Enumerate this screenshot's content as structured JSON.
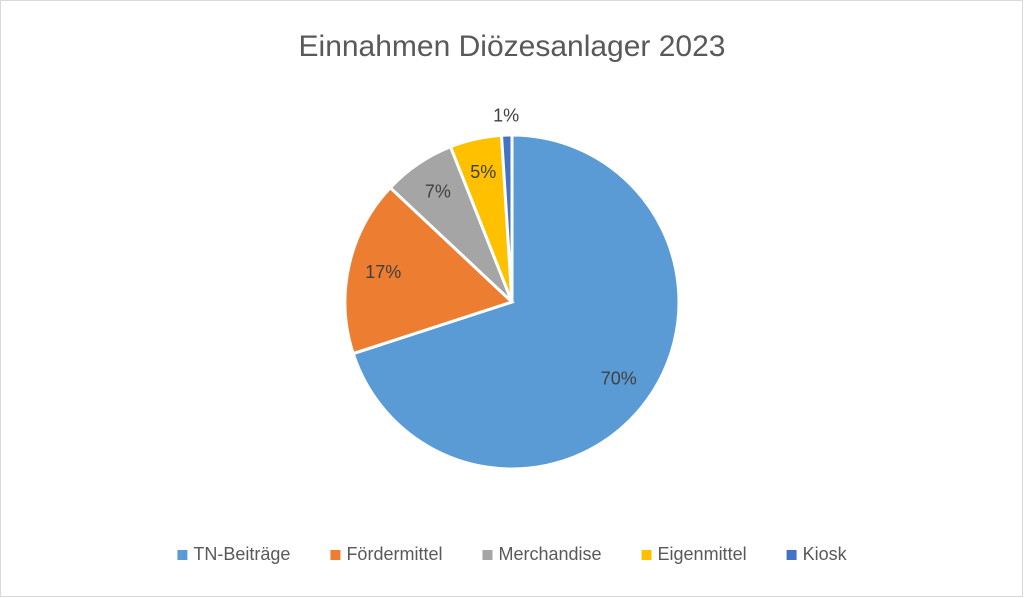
{
  "chart_data": {
    "type": "pie",
    "title": "Einnahmen Diözesanlager 2023",
    "categories": [
      "TN-Beiträge",
      "Fördermittel",
      "Merchandise",
      "Eigenmittel",
      "Kiosk"
    ],
    "values": [
      70,
      17,
      7,
      5,
      1
    ],
    "value_labels": [
      "70%",
      "17%",
      "7%",
      "5%",
      "1%"
    ],
    "colors": [
      "#5b9bd5",
      "#ed7d31",
      "#a5a5a5",
      "#ffc000",
      "#4472c4"
    ],
    "legend": "bottom"
  }
}
